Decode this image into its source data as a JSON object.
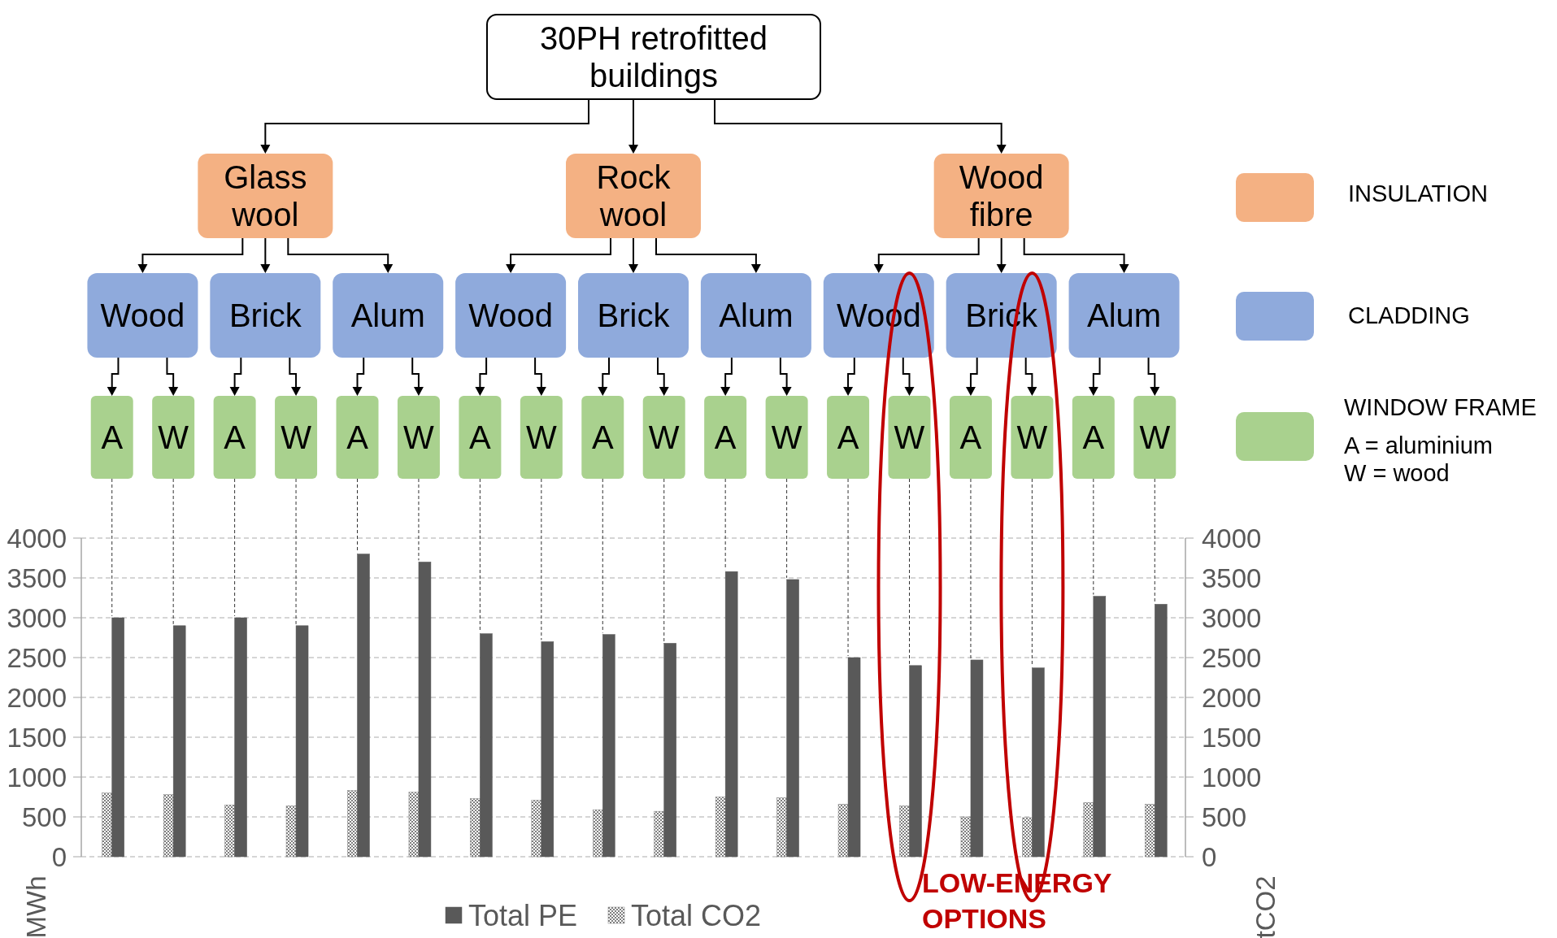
{
  "chart_data": {
    "type": "bar",
    "title": "30PH retrofitted buildings",
    "categories": [
      "A",
      "W",
      "A",
      "W",
      "A",
      "W",
      "A",
      "W",
      "A",
      "W",
      "A",
      "W",
      "A",
      "W",
      "A",
      "W",
      "A",
      "W"
    ],
    "series": [
      {
        "name": "Total CO2",
        "color": "#7f7f7f",
        "axis": "y2",
        "values": [
          800,
          780,
          650,
          640,
          830,
          810,
          730,
          710,
          590,
          570,
          750,
          740,
          660,
          640,
          500,
          490,
          680,
          660
        ]
      },
      {
        "name": "Total PE",
        "color": "#595959",
        "values": [
          3000,
          2900,
          3000,
          2900,
          3800,
          3700,
          2800,
          2700,
          2790,
          2680,
          3580,
          3480,
          2500,
          2400,
          2470,
          2370,
          3270,
          3170
        ]
      }
    ],
    "ylabel": "MWh",
    "y2label": "tCO2",
    "ylim": [
      0,
      4000
    ],
    "yticks": [
      0,
      500,
      1000,
      1500,
      2000,
      2500,
      3000,
      3500,
      4000
    ],
    "y2lim": [
      0,
      4000
    ],
    "y2ticks": [
      0,
      500,
      1000,
      1500,
      2000,
      2500,
      3000,
      3500,
      4000
    ],
    "grid": "y",
    "legend": "bottom",
    "annotations": [
      "Glass wool",
      "Rock wool",
      "Wood fibre",
      "Wood",
      "Brick",
      "Alum",
      "Wood",
      "Brick",
      "Alum",
      "Wood",
      "Brick",
      "Alum",
      "INSULATION",
      "CLADDING",
      "WINDOW FRAME",
      "A  = aluminium",
      "W = wood",
      "LOW-ENERGY OPTIONS"
    ]
  }
}
